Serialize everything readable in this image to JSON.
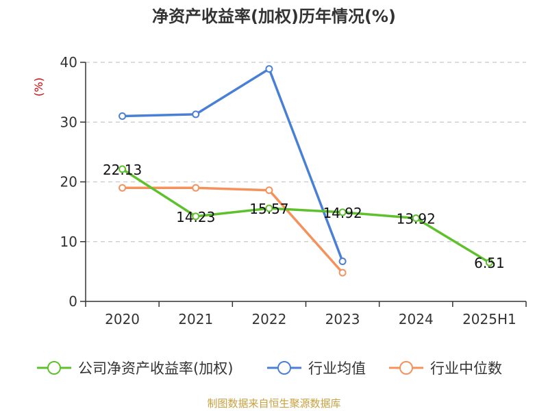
{
  "title": "净资产收益率(加权)历年情况(%)",
  "footer": "制图数据来自恒生聚源数据库",
  "colors": {
    "company": "#5ec12b",
    "avg": "#4a7fd6",
    "median": "#f5925c",
    "unit": "#cc0000",
    "axis": "#333333",
    "grid": "#c8c8c8"
  },
  "chart_data": {
    "type": "line",
    "categories": [
      "2020",
      "2021",
      "2022",
      "2023",
      "2024",
      "2025H1"
    ],
    "yunit": "(%)",
    "ylim": [
      0,
      40
    ],
    "yticks": [
      0,
      10,
      20,
      30,
      40
    ],
    "grid": true,
    "legend_position": "bottom",
    "series": [
      {
        "name": "公司净资产收益率(加权)",
        "color": "#5ec12b",
        "values": [
          22.13,
          14.23,
          15.57,
          14.92,
          13.92,
          6.51
        ],
        "labels": [
          "22.13",
          "14.23",
          "15.57",
          "14.92",
          "13.92",
          "6.51"
        ]
      },
      {
        "name": "行业均值",
        "color": "#4a7fd6",
        "values": [
          31.0,
          31.3,
          38.9,
          6.7,
          null,
          null
        ]
      },
      {
        "name": "行业中位数",
        "color": "#f5925c",
        "values": [
          19.0,
          19.0,
          18.6,
          4.8,
          null,
          null
        ]
      }
    ]
  }
}
